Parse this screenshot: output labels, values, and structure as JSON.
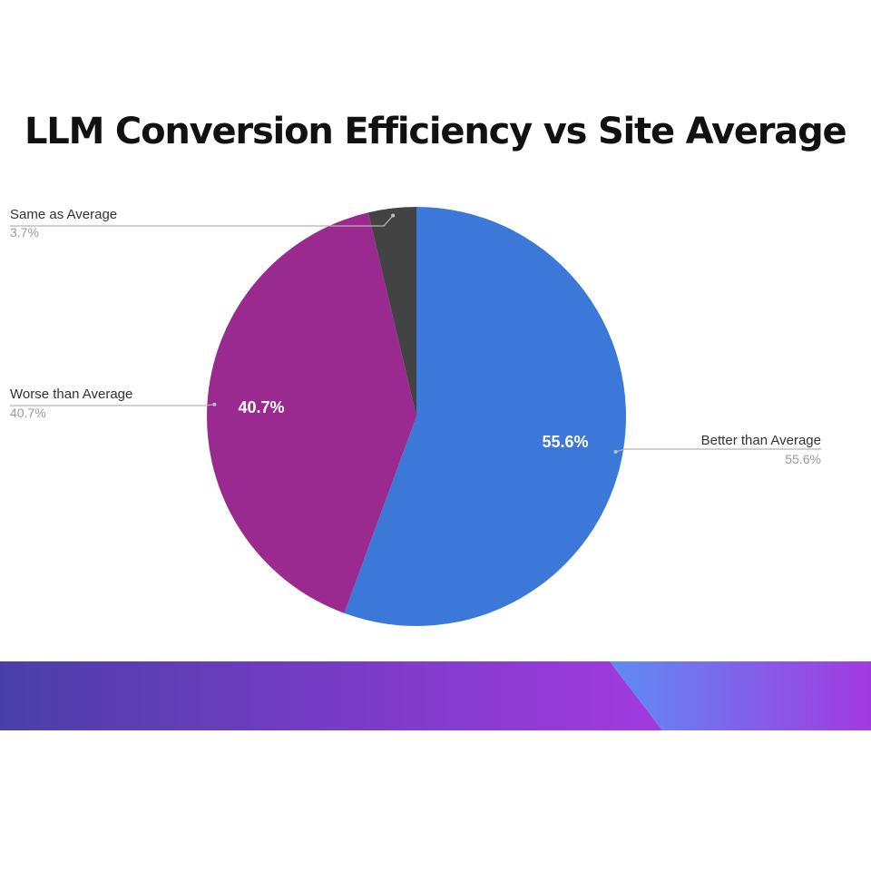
{
  "chart_data": {
    "type": "pie",
    "title": "LLM Conversion Efficiency vs Site Average",
    "slices": [
      {
        "label": "Better than Average",
        "value": 55.6,
        "display": "55.6%",
        "color": "#3C78D8"
      },
      {
        "label": "Worse than Average",
        "value": 40.7,
        "display": "40.7%",
        "color": "#9A2A8F"
      },
      {
        "label": "Same as Average",
        "value": 3.7,
        "display": "3.7%",
        "color": "#434343"
      }
    ],
    "start": "12 o'clock",
    "direction": "clockwise"
  },
  "colors": {
    "band_start": "#4A3FA8",
    "band_mid": "#A23AE0",
    "band_end": "#5E8CF5"
  }
}
